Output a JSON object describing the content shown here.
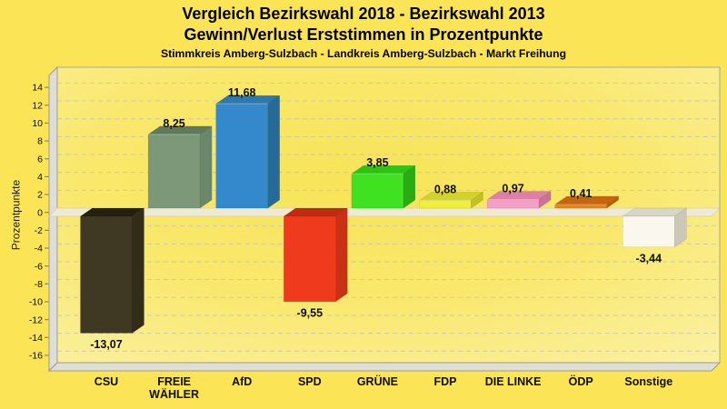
{
  "title": {
    "line1": "Vergleich Bezirkswahl 2018 - Bezirkswahl 2013",
    "line2": "Gewinn/Verlust Erststimmen in Prozentpunkte",
    "line3": "Stimmkreis Amberg-Sulzbach - Landkreis Amberg-Sulzbach - Markt Freihung"
  },
  "chart_data": {
    "type": "bar",
    "style": "3d-extruded-bars",
    "title": "Vergleich Bezirkswahl 2018 - Bezirkswahl 2013",
    "subtitle": "Gewinn/Verlust Erststimmen in Prozentpunkte",
    "subsubtitle": "Stimmkreis Amberg-Sulzbach - Landkreis Amberg-Sulzbach - Markt Freihung",
    "xlabel": "",
    "ylabel": "Prozentpunkte",
    "ylim": [
      -16,
      14
    ],
    "ytick_step": 2,
    "yticks": [
      14,
      12,
      10,
      8,
      6,
      4,
      2,
      0,
      -2,
      -4,
      -6,
      -8,
      -10,
      -12,
      -14,
      -16
    ],
    "grid": "horizontal-dashed",
    "legend": "none",
    "categories": [
      "CSU",
      "FREIE WÄHLER",
      "AfD",
      "SPD",
      "GRÜNE",
      "FDP",
      "DIE LINKE",
      "ÖDP",
      "Sonstige"
    ],
    "category_label_lines": [
      [
        "CSU"
      ],
      [
        "FREIE",
        "WÄHLER"
      ],
      [
        "AfD"
      ],
      [
        "SPD"
      ],
      [
        "GRÜNE"
      ],
      [
        "FDP"
      ],
      [
        "DIE LINKE"
      ],
      [
        "ÖDP"
      ],
      [
        "Sonstige"
      ]
    ],
    "values": [
      -13.07,
      8.25,
      11.68,
      -9.55,
      3.85,
      0.88,
      0.97,
      0.41,
      -3.44
    ],
    "value_labels": [
      "-13,07",
      "8,25",
      "11,68",
      "-9,55",
      "3,85",
      "0,88",
      "0,97",
      "0,41",
      "-3,44"
    ],
    "bar_colors": [
      {
        "name": "CSU",
        "front": "#3F3924",
        "top": "#24200F",
        "side": "#312D19"
      },
      {
        "name": "FREIE WÄHLER",
        "front": "#7C9878",
        "top": "#5E795D",
        "side": "#69876A"
      },
      {
        "name": "AfD",
        "front": "#3389CB",
        "top": "#2D78B0",
        "side": "#276A9A"
      },
      {
        "name": "SPD",
        "front": "#EF3A1E",
        "top": "#BE2D12",
        "side": "#C93114"
      },
      {
        "name": "GRÜNE",
        "front": "#3FE121",
        "top": "#2EC414",
        "side": "#29AC12"
      },
      {
        "name": "FDP",
        "front": "#F0F03C",
        "top": "#D2D22A",
        "side": "#C2C222"
      },
      {
        "name": "DIE LINKE",
        "front": "#F49FC4",
        "top": "#DE7FA8",
        "side": "#CE7098"
      },
      {
        "name": "ÖDP",
        "front": "#E8821E",
        "top": "#C4660E",
        "side": "#B65E10"
      },
      {
        "name": "Sonstige",
        "front": "#FAF8EE",
        "top": "#D9D6C8",
        "side": "#CBC8BA"
      }
    ]
  },
  "colors": {
    "background": "#FBE456",
    "plot_center": "#F8E459",
    "plot_mid": "#F9E86B",
    "plot_edge": "#FBF0A0",
    "grid": "#D0C9AB",
    "frame": "#A8A89E",
    "wall": "#DEDED6",
    "wall_edge": "#9C9C92",
    "zero_slab": "#EEEAD6",
    "zero_slab_edge": "#D6D1B8",
    "tick": "#88887C",
    "text": "#000000"
  }
}
